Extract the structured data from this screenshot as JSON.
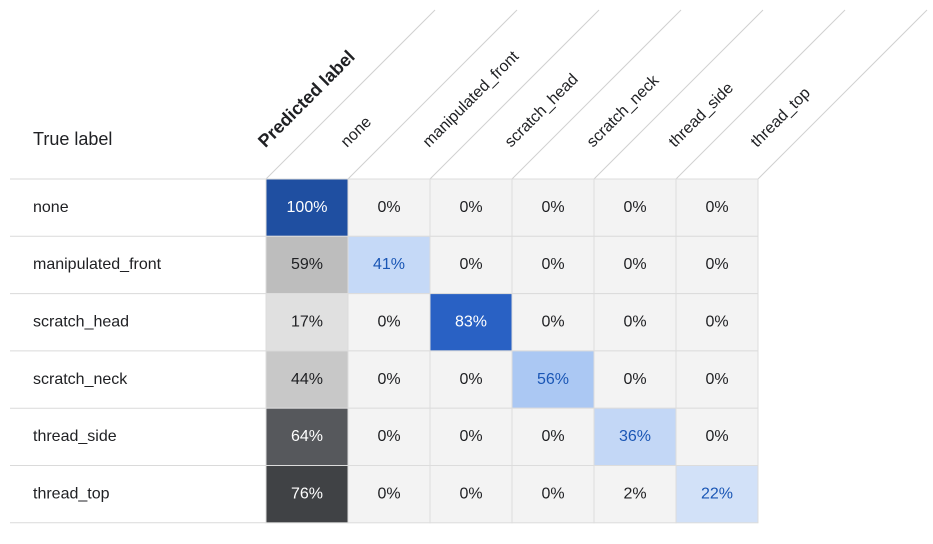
{
  "header": {
    "true_label": "True label",
    "predicted_label": "Predicted label"
  },
  "columns": [
    "none",
    "manipulated_front",
    "scratch_head",
    "scratch_neck",
    "thread_side",
    "thread_top"
  ],
  "rows": [
    {
      "label": "none",
      "cells": [
        "100%",
        "0%",
        "0%",
        "0%",
        "0%",
        "0%"
      ],
      "fills": [
        "#1f4fa1",
        "#f3f3f3",
        "#f3f3f3",
        "#f3f3f3",
        "#f3f3f3",
        "#f3f3f3"
      ]
    },
    {
      "label": "manipulated_front",
      "cells": [
        "59%",
        "41%",
        "0%",
        "0%",
        "0%",
        "0%"
      ],
      "fills": [
        "#bdbdbd",
        "#c5d9f7",
        "#f3f3f3",
        "#f3f3f3",
        "#f3f3f3",
        "#f3f3f3"
      ]
    },
    {
      "label": "scratch_head",
      "cells": [
        "17%",
        "0%",
        "83%",
        "0%",
        "0%",
        "0%"
      ],
      "fills": [
        "#e0e0e0",
        "#f3f3f3",
        "#2961c4",
        "#f3f3f3",
        "#f3f3f3",
        "#f3f3f3"
      ]
    },
    {
      "label": "scratch_neck",
      "cells": [
        "44%",
        "0%",
        "0%",
        "56%",
        "0%",
        "0%"
      ],
      "fills": [
        "#c8c8c8",
        "#f3f3f3",
        "#f3f3f3",
        "#abc8f3",
        "#f3f3f3",
        "#f3f3f3"
      ]
    },
    {
      "label": "thread_side",
      "cells": [
        "64%",
        "0%",
        "0%",
        "0%",
        "36%",
        "0%"
      ],
      "fills": [
        "#56585c",
        "#f3f3f3",
        "#f3f3f3",
        "#f3f3f3",
        "#c3d7f6",
        "#f3f3f3"
      ]
    },
    {
      "label": "thread_top",
      "cells": [
        "76%",
        "0%",
        "0%",
        "0%",
        "2%",
        "22%"
      ],
      "fills": [
        "#404245",
        "#f3f3f3",
        "#f3f3f3",
        "#f3f3f3",
        "#f3f3f3",
        "#d2e1f8"
      ]
    }
  ]
}
